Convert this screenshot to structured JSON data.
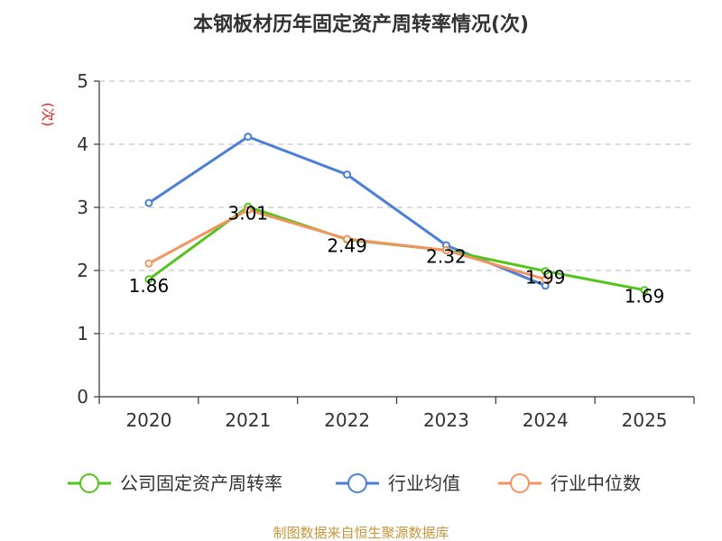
{
  "chart_data": {
    "type": "line",
    "title": "本钢板材历年固定资产周转率情况(次)",
    "ylabel": "(次)",
    "xlabel": "",
    "categories": [
      "2020",
      "2021",
      "2022",
      "2023",
      "2024",
      "2025"
    ],
    "ylim": [
      0,
      5
    ],
    "yticks": [
      0,
      1,
      2,
      3,
      4,
      5
    ],
    "grid": true,
    "legend_position": "bottom",
    "series": [
      {
        "name": "公司固定资产周转率",
        "color": "#52c41a",
        "values": [
          1.86,
          3.01,
          2.49,
          2.32,
          1.99,
          1.69
        ],
        "labels": [
          "1.86",
          "3.01",
          "2.49",
          "2.32",
          "1.99",
          "1.69"
        ]
      },
      {
        "name": "行业均值",
        "color": "#4a7fd8",
        "values": [
          3.07,
          4.12,
          3.52,
          2.4,
          1.76,
          null
        ]
      },
      {
        "name": "行业中位数",
        "color": "#f39460",
        "values": [
          2.11,
          2.96,
          2.5,
          2.32,
          1.86,
          null
        ]
      }
    ],
    "source": "制图数据来自恒生聚源数据库"
  }
}
